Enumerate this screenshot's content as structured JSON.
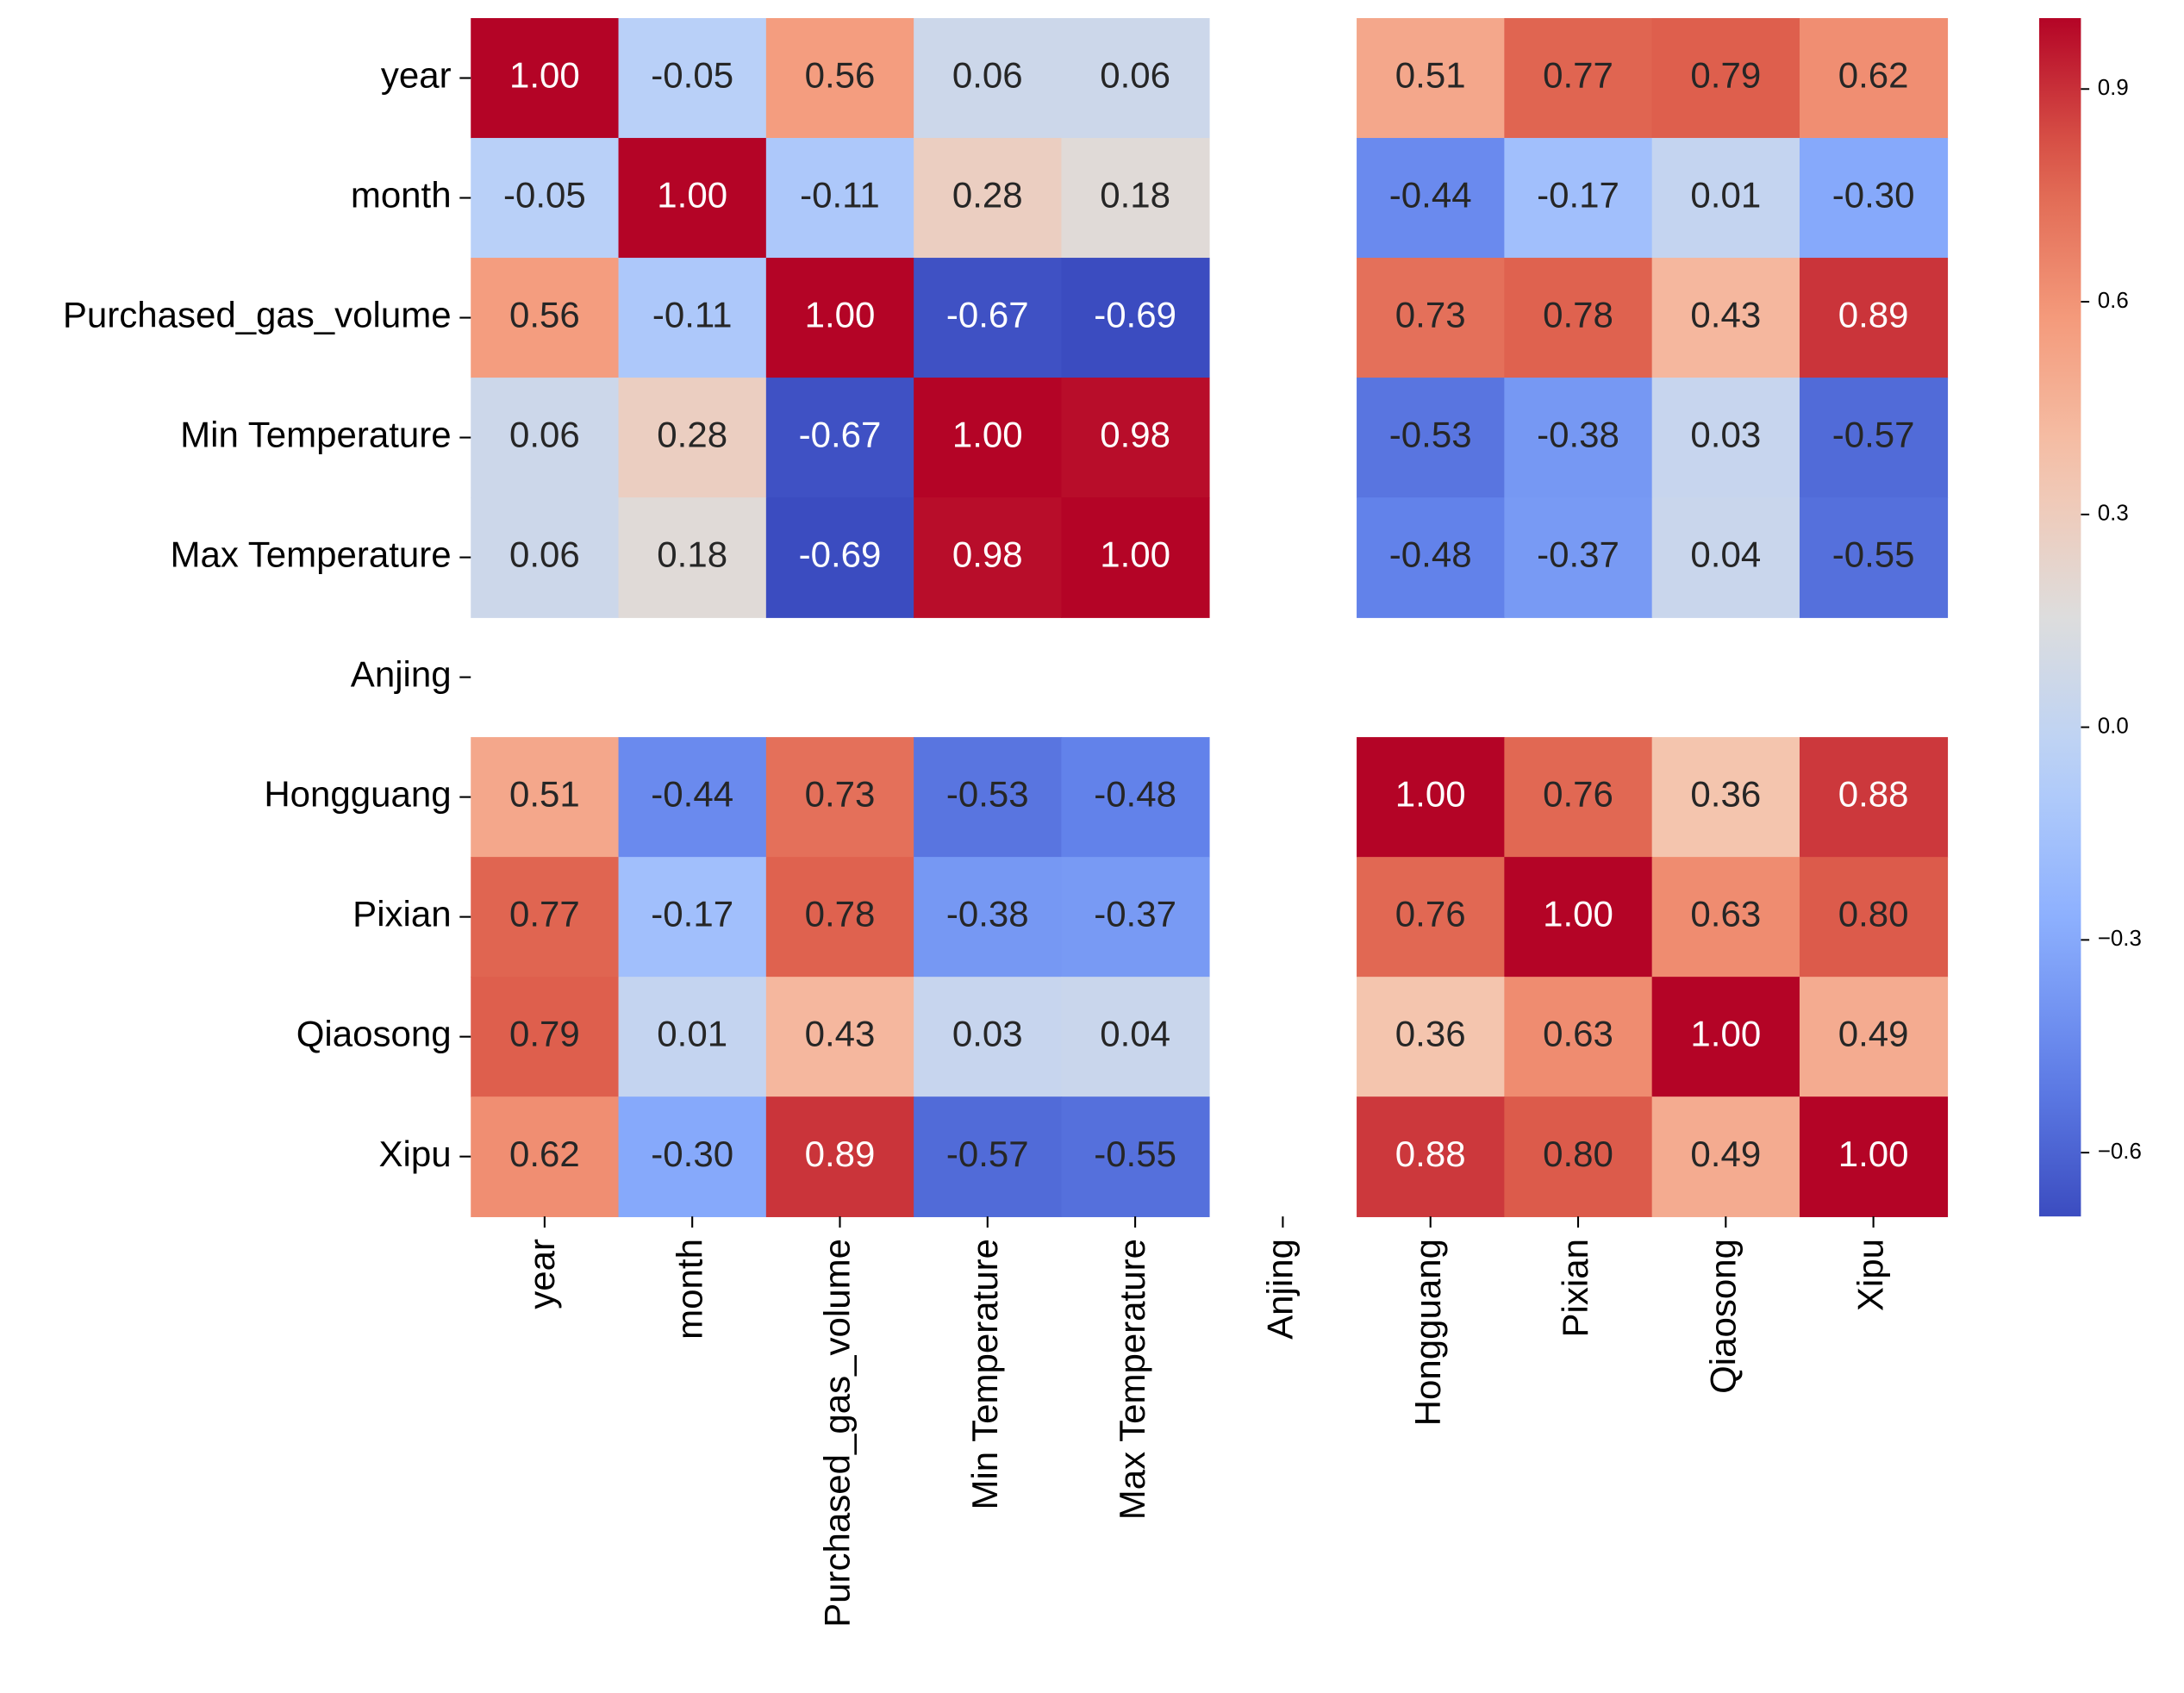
{
  "chart_data": {
    "type": "heatmap",
    "rows": [
      "year",
      "month",
      "Purchased_gas_volume",
      "Min Temperature",
      "Max Temperature",
      "Anjing",
      "Hongguang",
      "Pixian",
      "Qiaosong",
      "Xipu"
    ],
    "columns": [
      "year",
      "month",
      "Purchased_gas_volume",
      "Min Temperature",
      "Max Temperature",
      "Anjing",
      "Hongguang",
      "Pixian",
      "Qiaosong",
      "Xipu"
    ],
    "values": [
      [
        1.0,
        -0.05,
        0.56,
        0.06,
        0.06,
        null,
        0.51,
        0.77,
        0.79,
        0.62
      ],
      [
        -0.05,
        1.0,
        -0.11,
        0.28,
        0.18,
        null,
        -0.44,
        -0.17,
        0.01,
        -0.3
      ],
      [
        0.56,
        -0.11,
        1.0,
        -0.67,
        -0.69,
        null,
        0.73,
        0.78,
        0.43,
        0.89
      ],
      [
        0.06,
        0.28,
        -0.67,
        1.0,
        0.98,
        null,
        -0.53,
        -0.38,
        0.03,
        -0.57
      ],
      [
        0.06,
        0.18,
        -0.69,
        0.98,
        1.0,
        null,
        -0.48,
        -0.37,
        0.04,
        -0.55
      ],
      [
        null,
        null,
        null,
        null,
        null,
        null,
        null,
        null,
        null,
        null
      ],
      [
        0.51,
        -0.44,
        0.73,
        -0.53,
        -0.48,
        null,
        1.0,
        0.76,
        0.36,
        0.88
      ],
      [
        0.77,
        -0.17,
        0.78,
        -0.38,
        -0.37,
        null,
        0.76,
        1.0,
        0.63,
        0.8
      ],
      [
        0.79,
        0.01,
        0.43,
        0.03,
        0.04,
        null,
        0.36,
        0.63,
        1.0,
        0.49
      ],
      [
        0.62,
        -0.3,
        0.89,
        -0.57,
        -0.55,
        null,
        0.88,
        0.8,
        0.49,
        1.0
      ]
    ],
    "value_labels": [
      [
        "1.00",
        "-0.05",
        "0.56",
        "0.06",
        "0.06",
        null,
        "0.51",
        "0.77",
        "0.79",
        "0.62"
      ],
      [
        "-0.05",
        "1.00",
        "-0.11",
        "0.28",
        "0.18",
        null,
        "-0.44",
        "-0.17",
        "0.01",
        "-0.30"
      ],
      [
        "0.56",
        "-0.11",
        "1.00",
        "-0.67",
        "-0.69",
        null,
        "0.73",
        "0.78",
        "0.43",
        "0.89"
      ],
      [
        "0.06",
        "0.28",
        "-0.67",
        "1.00",
        "0.98",
        null,
        "-0.53",
        "-0.38",
        "0.03",
        "-0.57"
      ],
      [
        "0.06",
        "0.18",
        "-0.69",
        "0.98",
        "1.00",
        null,
        "-0.48",
        "-0.37",
        "0.04",
        "-0.55"
      ],
      [
        null,
        null,
        null,
        null,
        null,
        null,
        null,
        null,
        null,
        null
      ],
      [
        "0.51",
        "-0.44",
        "0.73",
        "-0.53",
        "-0.48",
        null,
        "1.00",
        "0.76",
        "0.36",
        "0.88"
      ],
      [
        "0.77",
        "-0.17",
        "0.78",
        "-0.38",
        "-0.37",
        null,
        "0.76",
        "1.00",
        "0.63",
        "0.80"
      ],
      [
        "0.79",
        "0.01",
        "0.43",
        "0.03",
        "0.04",
        null,
        "0.36",
        "0.63",
        "1.00",
        "0.49"
      ],
      [
        "0.62",
        "-0.30",
        "0.89",
        "-0.57",
        "-0.55",
        null,
        "0.88",
        "0.80",
        "0.49",
        "1.00"
      ]
    ],
    "colormap": "coolwarm",
    "clim": [
      -0.69,
      1.0
    ],
    "cticks": [
      {
        "value": -0.6,
        "label": "−0.6"
      },
      {
        "value": -0.3,
        "label": "−0.3"
      },
      {
        "value": 0,
        "label": "0.0"
      },
      0.3,
      0.6,
      0.9
    ]
  }
}
